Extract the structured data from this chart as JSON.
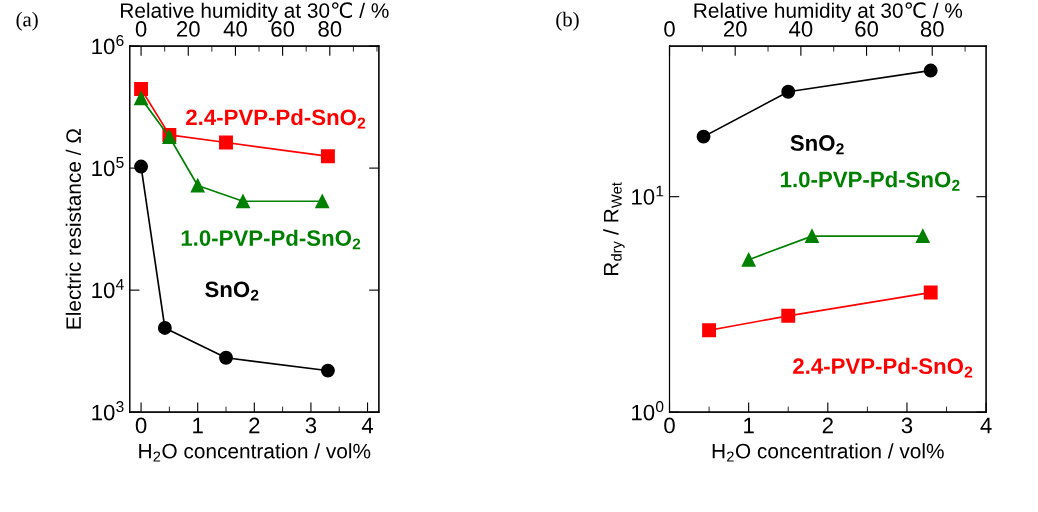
{
  "chart_data": [
    {
      "type": "line",
      "title": "(a)",
      "xlabel": "H$_{2}$O concentration / vol%",
      "ylabel": "Electric resistance / Ω",
      "x2label": "Relative humidity at 30℃ / %",
      "xlim": [
        -0.2,
        4.2
      ],
      "xticks": [
        0,
        1,
        2,
        3,
        4
      ],
      "x2lim": [
        -4.8,
        100.8
      ],
      "x2ticks": [
        0,
        20,
        40,
        60,
        80
      ],
      "ylim": [
        1000,
        1000000
      ],
      "yticks": [
        {
          "value": 1000,
          "label": "10$^{3}$"
        },
        {
          "value": 10000,
          "label": "10$^{4}$"
        },
        {
          "value": 100000,
          "label": "10$^{5}$"
        },
        {
          "value": 1000000,
          "label": "10$^{6}$"
        }
      ],
      "log": "y",
      "grid": false,
      "legend": false,
      "series": [
        {
          "name": "2.4-PVP-Pd-SnO$_{2}$",
          "color": "#ff0000",
          "marker": "square",
          "x": [
            0,
            0.5,
            1.5,
            3.3
          ],
          "values": [
            445000,
            187000,
            162000,
            125000
          ]
        },
        {
          "name": "1.0-PVP-Pd-SnO$_{2}$",
          "color": "#008000",
          "marker": "triangle",
          "x": [
            0,
            0.5,
            1.0,
            1.8,
            3.2
          ],
          "values": [
            373000,
            180000,
            72000,
            53500,
            53500
          ]
        },
        {
          "name": "SnO$_{2}$",
          "color": "#000000",
          "marker": "circle",
          "x": [
            0,
            0.42,
            1.5,
            3.3
          ],
          "values": [
            103000,
            4900,
            2790,
            2190
          ]
        }
      ]
    },
    {
      "type": "line",
      "title": "(b)",
      "xlabel": "H$_{2}$O concentration / vol%",
      "ylabel": "R$_{dry}$ / R$_{Wet}$",
      "x2label": "Relative humidity at 30℃ / %",
      "xlim": [
        0,
        4
      ],
      "xticks": [
        0,
        1,
        2,
        3,
        4
      ],
      "x2lim": [
        0,
        96.4
      ],
      "x2ticks": [
        0,
        20,
        40,
        60,
        80
      ],
      "ylim": [
        1,
        50
      ],
      "yticks": [
        {
          "value": 1,
          "label": "10$^{0}$"
        },
        {
          "value": 10,
          "label": "10$^{1}$"
        }
      ],
      "log": "y",
      "grid": false,
      "legend": false,
      "series": [
        {
          "name": "SnO$_{2}$",
          "color": "#000000",
          "marker": "circle",
          "x": [
            0.43,
            1.5,
            3.3
          ],
          "values": [
            19.0,
            30.7,
            38.5
          ]
        },
        {
          "name": "1.0-PVP-Pd-SnO$_{2}$",
          "color": "#008000",
          "marker": "triangle",
          "x": [
            1.0,
            1.8,
            3.2
          ],
          "values": [
            5.1,
            6.56,
            6.56
          ]
        },
        {
          "name": "2.4-PVP-Pd-SnO$_{2}$",
          "color": "#ff0000",
          "marker": "square",
          "x": [
            0.5,
            1.5,
            3.3
          ],
          "values": [
            2.4,
            2.8,
            3.59
          ]
        }
      ]
    }
  ]
}
